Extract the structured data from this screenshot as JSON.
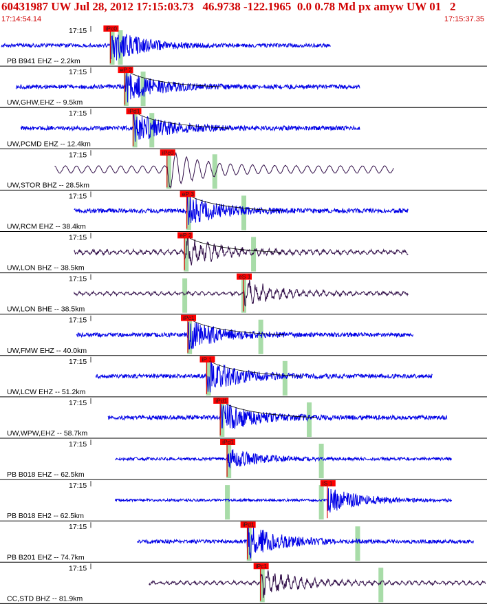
{
  "header": {
    "title": "60431987 UW Jul 28, 2012 17:15:03.73   46.9738 -122.1965  0.0 0.78 Md px amyw UW 01   2",
    "time_start": "17:14:54.14",
    "time_end": "17:15:37.35"
  },
  "colors": {
    "header_red": "#d00000",
    "trace_blue": "#0000e6",
    "trace_purple": "#33104a",
    "pick_red": "#e00000",
    "pick_box_red": "#ff0000",
    "window_green": "#a8dca8",
    "decay_curve": "#000000",
    "separator": "#000000"
  },
  "chart_data": {
    "type": "line",
    "description_none": "",
    "x_unit": "time",
    "time_start": "17:14:54.14",
    "time_end": "17:15:37.35",
    "tick_label": "17:15",
    "traces": [
      {
        "station": "PB B941 EHZ -- 2.2km",
        "tick": "17:15",
        "color": "blue",
        "pick": "iPc0",
        "t_start": 0.0,
        "t_end": 0.68,
        "t_pick": 0.225,
        "amp": 0.25,
        "burst": 1.0,
        "style": "hf",
        "picks_green": [
          0.228,
          0.245
        ]
      },
      {
        "station": "UW,GHW,EHZ -- 9.5km",
        "tick": "17:15",
        "color": "blue",
        "pick": "eP 2",
        "t_start": 0.03,
        "t_end": 0.74,
        "t_pick": 0.255,
        "amp": 0.28,
        "burst": 0.9,
        "style": "hf",
        "picks_green": [
          0.257,
          0.292
        ],
        "decay": true
      },
      {
        "station": "UW,PCMD EHZ -- 12.4km",
        "tick": "17:15",
        "color": "blue",
        "pick": "iPd1",
        "t_start": 0.04,
        "t_end": 0.74,
        "t_pick": 0.272,
        "amp": 0.3,
        "burst": 0.9,
        "style": "hf",
        "picks_green": [
          0.275,
          0.31
        ],
        "decay": true
      },
      {
        "station": "UW,STOR BHZ -- 28.5km",
        "tick": "17:15",
        "color": "purple",
        "pick": "iPc0",
        "t_start": 0.11,
        "t_end": 0.81,
        "t_pick": 0.342,
        "amp": 0.35,
        "burst": 0.7,
        "style": "lf",
        "picks_green": [
          0.345,
          0.44
        ]
      },
      {
        "station": "UW,RCM EHZ -- 38.4km",
        "tick": "17:15",
        "color": "blue",
        "pick": "eP 3",
        "t_start": 0.15,
        "t_end": 0.84,
        "t_pick": 0.383,
        "amp": 0.3,
        "burst": 0.9,
        "style": "hf",
        "picks_green": [
          0.386,
          0.5
        ],
        "decay": true
      },
      {
        "station": "UW,LON BHZ -- 38.5km",
        "tick": "17:15",
        "color": "purple",
        "pick": "eP 2",
        "t_start": 0.15,
        "t_end": 0.84,
        "t_pick": 0.378,
        "amp": 0.32,
        "burst": 0.8,
        "style": "mf",
        "picks_green": [
          0.381,
          0.52
        ],
        "decay": true
      },
      {
        "station": "UW,LON BHE -- 38.5km",
        "tick": "17:15",
        "color": "purple",
        "pick": "eS 1",
        "t_start": 0.15,
        "t_end": 0.84,
        "t_pick": 0.5,
        "amp": 0.25,
        "burst": 0.7,
        "style": "mf",
        "picks_green": [
          0.378,
          0.5
        ]
      },
      {
        "station": "UW,FMW EHZ -- 40.0km",
        "tick": "17:15",
        "color": "blue",
        "pick": "iPc1",
        "t_start": 0.155,
        "t_end": 0.85,
        "t_pick": 0.385,
        "amp": 0.28,
        "burst": 0.9,
        "style": "hf",
        "picks_green": [
          0.388,
          0.535
        ],
        "decay": true
      },
      {
        "station": "UW,LCW EHZ -- 51.2km",
        "tick": "17:15",
        "color": "blue",
        "pick": "iP 1",
        "t_start": 0.195,
        "t_end": 0.89,
        "t_pick": 0.424,
        "amp": 0.28,
        "burst": 1.0,
        "style": "hf",
        "picks_green": [
          0.427,
          0.585
        ],
        "decay": true
      },
      {
        "station": "UW,WPW,EHZ -- 58.7km",
        "tick": "17:15",
        "color": "blue",
        "pick": "iPd1",
        "t_start": 0.22,
        "t_end": 0.92,
        "t_pick": 0.452,
        "amp": 0.3,
        "burst": 0.9,
        "style": "hf",
        "picks_green": [
          0.455,
          0.635
        ],
        "decay": true
      },
      {
        "station": "PB B018 EHZ -- 62.5km",
        "tick": "17:15",
        "color": "blue",
        "pick": "iPd1",
        "t_start": 0.235,
        "t_end": 0.93,
        "t_pick": 0.466,
        "amp": 0.2,
        "burst": 0.6,
        "style": "hf",
        "picks_green": [
          0.469,
          0.66
        ]
      },
      {
        "station": "PB B018 EH2 -- 62.5km",
        "tick": "17:15",
        "color": "blue",
        "pick": "iS 1",
        "t_start": 0.235,
        "t_end": 0.93,
        "t_pick": 0.673,
        "amp": 0.18,
        "burst": 0.8,
        "style": "hf",
        "picks_green": [
          0.466,
          0.66
        ]
      },
      {
        "station": "PB B201 EHZ -- 74.7km",
        "tick": "17:15",
        "color": "blue",
        "pick": "iPd1",
        "t_start": 0.28,
        "t_end": 0.975,
        "t_pick": 0.508,
        "amp": 0.25,
        "burst": 1.0,
        "style": "hf",
        "picks_green": [
          0.511,
          0.735
        ]
      },
      {
        "station": "CC,STD BHZ -- 81.9km",
        "tick": "17:15",
        "color": "purple",
        "pick": "iPc1",
        "t_start": 0.305,
        "t_end": 1.0,
        "t_pick": 0.535,
        "amp": 0.25,
        "burst": 0.9,
        "style": "mf",
        "picks_green": [
          0.538,
          0.783
        ]
      }
    ]
  }
}
